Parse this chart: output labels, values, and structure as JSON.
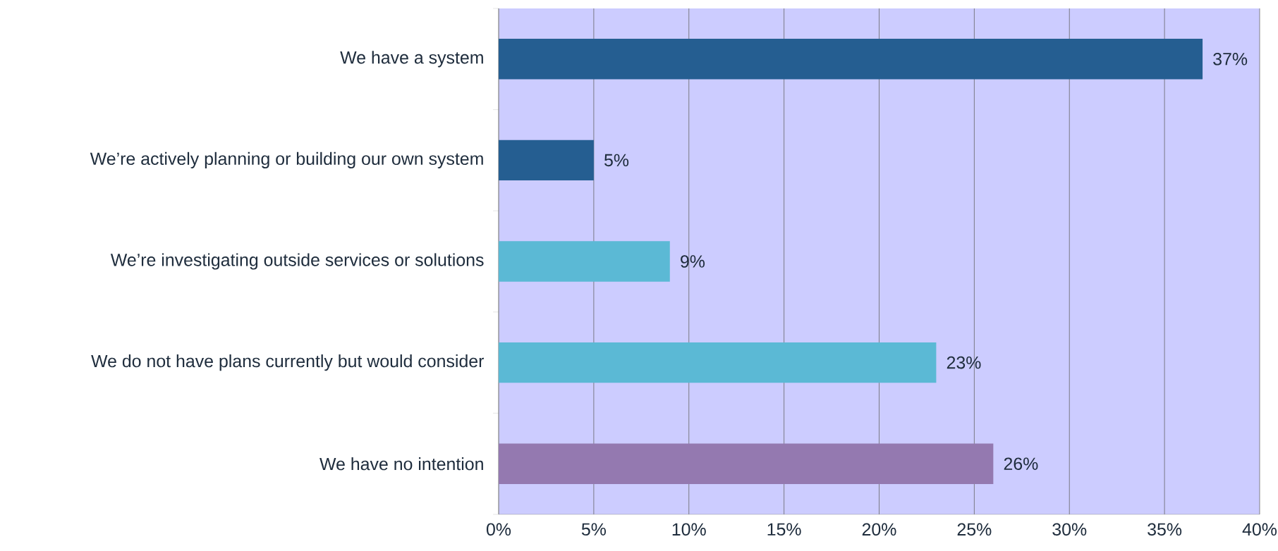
{
  "chart_data": {
    "type": "bar",
    "orientation": "horizontal",
    "categories": [
      "We have a system",
      "We’re actively planning or building our own system",
      "We’re investigating outside services or solutions",
      "We do not have plans currently but would consider",
      "We have no intention"
    ],
    "values": [
      37,
      5,
      9,
      23,
      26
    ],
    "colors": [
      "#255e91",
      "#255e91",
      "#5bb9d5",
      "#5bb9d5",
      "#9479b0"
    ],
    "value_labels": [
      "37%",
      "5%",
      "9%",
      "23%",
      "26%"
    ],
    "xlim": [
      0,
      40
    ],
    "xticks": [
      {
        "value": 0,
        "label": "0%"
      },
      {
        "value": 5,
        "label": "5%"
      },
      {
        "value": 10,
        "label": "10%"
      },
      {
        "value": 15,
        "label": "15%"
      },
      {
        "value": 20,
        "label": "20%"
      },
      {
        "value": 25,
        "label": "25%"
      },
      {
        "value": 30,
        "label": "30%"
      },
      {
        "value": 35,
        "label": "35%"
      },
      {
        "value": 40,
        "label": "40%"
      }
    ],
    "grid": "x"
  }
}
